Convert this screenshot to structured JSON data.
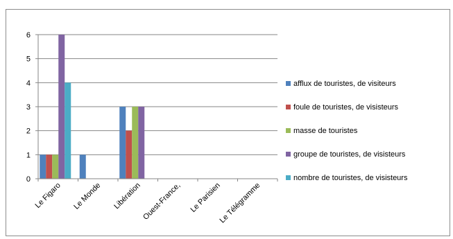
{
  "chart_data": {
    "type": "bar",
    "categories": [
      "Le Figaro",
      "Le Monde",
      "Libération",
      "Ouest-France,",
      "Le Parisien",
      "Le Télégramme"
    ],
    "series": [
      {
        "name": "afflux de touristes, de visiteurs",
        "color": "#4f81bd",
        "values": [
          1,
          1,
          3,
          0,
          0,
          0
        ]
      },
      {
        "name": "foule de touristes, de  visisteurs",
        "color": "#c0504d",
        "values": [
          1,
          0,
          2,
          0,
          0,
          0
        ]
      },
      {
        "name": "masse de touristes",
        "color": "#9bbb59",
        "values": [
          1,
          0,
          3,
          0,
          0,
          0
        ]
      },
      {
        "name": "groupe de touristes, de  visisteurs",
        "color": "#8064a2",
        "values": [
          6,
          0,
          3,
          0,
          0,
          0
        ]
      },
      {
        "name": "nombre de touristes, de  visisteurs",
        "color": "#4bacc6",
        "values": [
          4,
          0,
          0,
          0,
          0,
          0
        ]
      }
    ],
    "yticks": [
      "0",
      "1",
      "2",
      "3",
      "4",
      "5",
      "6"
    ],
    "ylim": [
      0,
      6
    ],
    "grid": true,
    "legend": "right",
    "title": "",
    "xlabel": "",
    "ylabel": ""
  }
}
